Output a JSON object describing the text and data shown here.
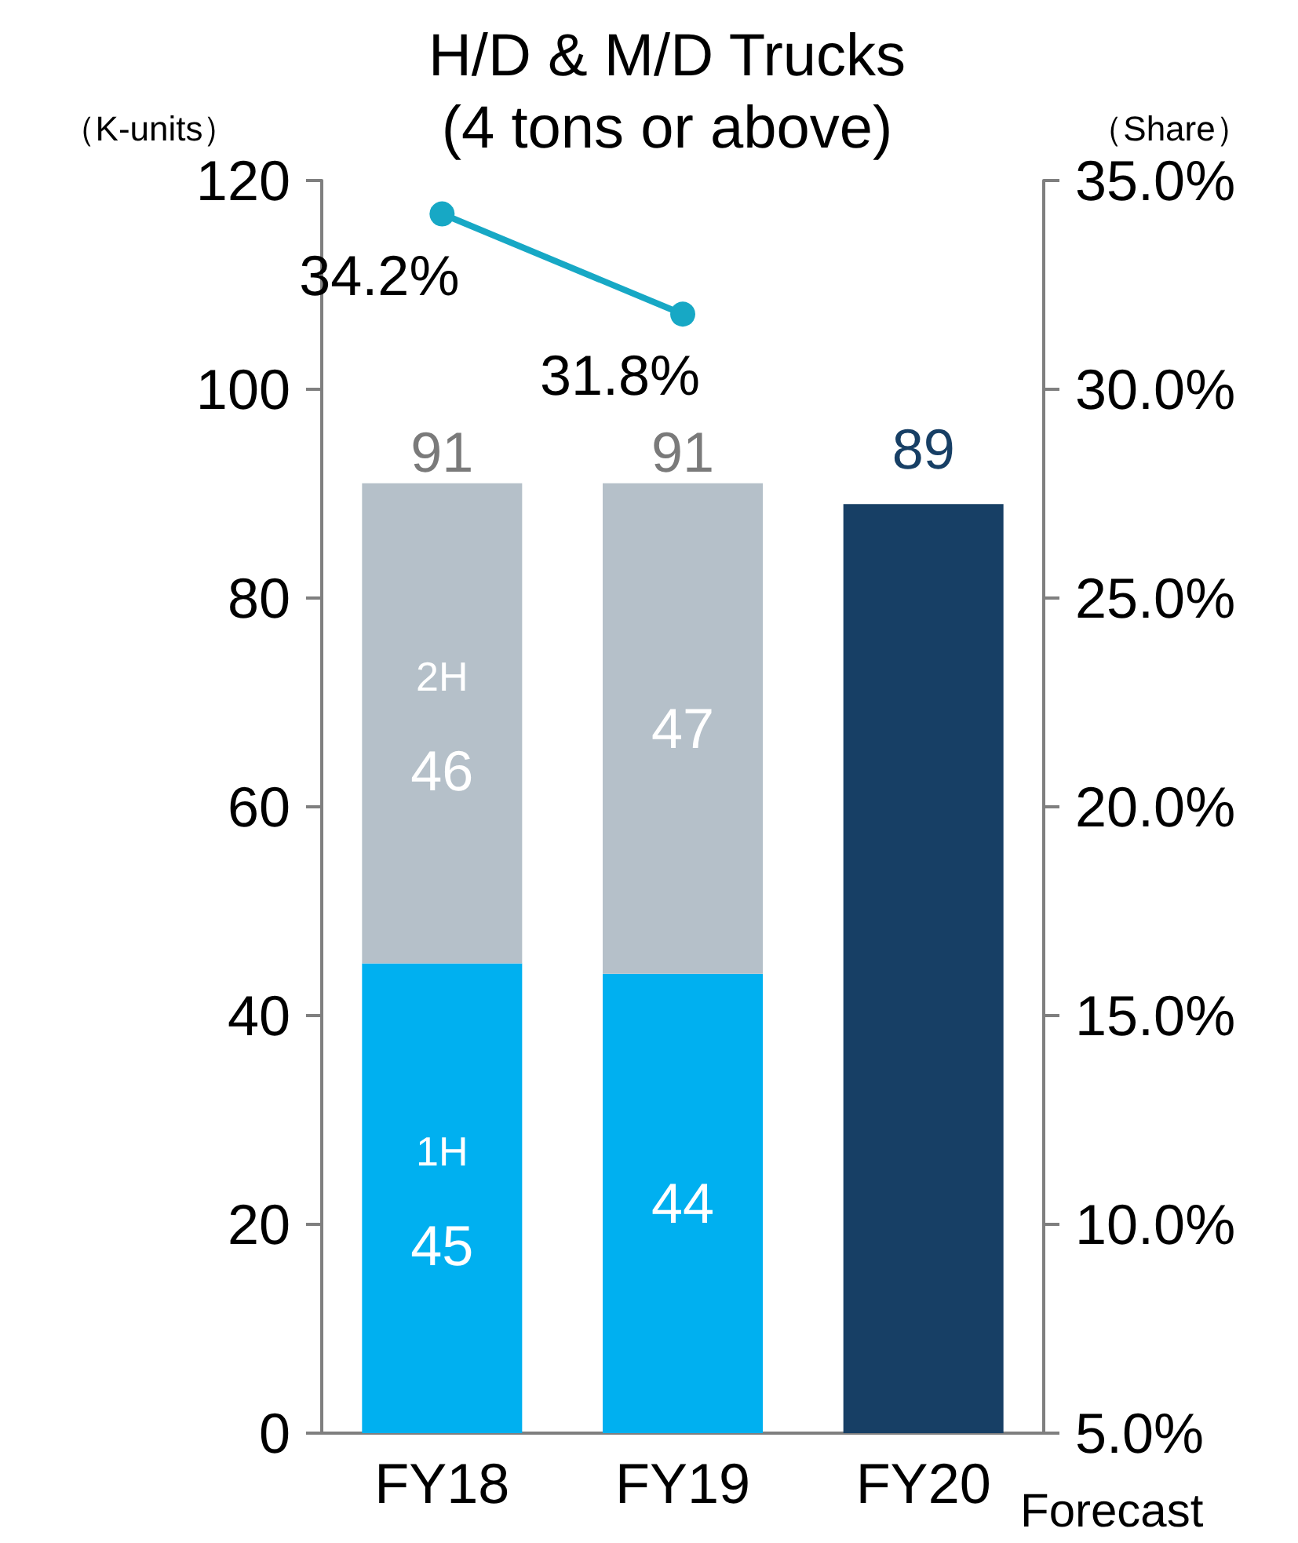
{
  "chart_data": {
    "type": "bar",
    "title": "H/D & M/D Trucks\n(4 tons or above)",
    "ylabel": "（K-units）",
    "y2label": "（Share）",
    "categories": [
      "FY18",
      "FY19",
      "FY20"
    ],
    "stacked": true,
    "data_labels": true,
    "legend": false,
    "grid": false,
    "ylim": [
      0,
      120
    ],
    "yticks": [
      0,
      20,
      40,
      60,
      80,
      100,
      120
    ],
    "y2lim": [
      5,
      35
    ],
    "y2ticks": [
      {
        "value": 5,
        "label": "5.0%"
      },
      {
        "value": 10,
        "label": "10.0%"
      },
      {
        "value": 15,
        "label": "15.0%"
      },
      {
        "value": 20,
        "label": "20.0%"
      },
      {
        "value": 25,
        "label": "25.0%"
      },
      {
        "value": 30,
        "label": "30.0%"
      },
      {
        "value": 35,
        "label": "35.0%"
      }
    ],
    "series": [
      {
        "name": "1H",
        "color": "#00b0f0",
        "values": [
          45,
          44,
          null
        ]
      },
      {
        "name": "2H",
        "color": "#b5c0c9",
        "values": [
          46,
          47,
          null
        ]
      },
      {
        "color": "#173f65",
        "values": [
          null,
          null,
          89
        ]
      },
      {
        "type": "line",
        "axis": "y2",
        "color": "#17a8c5",
        "marker": "circle",
        "values": [
          34.2,
          31.8,
          null
        ],
        "value_labels": [
          "34.2%",
          "31.8%",
          null
        ]
      }
    ],
    "totals": [
      "91",
      "91",
      null
    ],
    "annotations": [
      "Forecast"
    ]
  }
}
